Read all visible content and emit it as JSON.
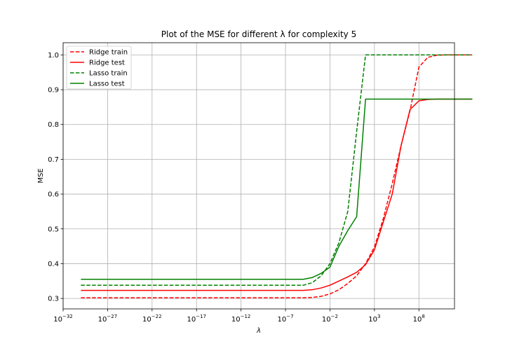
{
  "chart_data": {
    "type": "line",
    "title": "Plot of the MSE for different λ for complexity 5",
    "xlabel": "λ",
    "ylabel": "MSE",
    "xscale": "log",
    "xlim_exp": [
      -32,
      12
    ],
    "ylim": [
      0.27,
      1.035
    ],
    "grid": true,
    "legend_position": "top-left",
    "x_ticks": [
      {
        "exp": -32,
        "base": "10",
        "sup": "−32"
      },
      {
        "exp": -27,
        "base": "10",
        "sup": "−27"
      },
      {
        "exp": -22,
        "base": "10",
        "sup": "−22"
      },
      {
        "exp": -17,
        "base": "10",
        "sup": "−17"
      },
      {
        "exp": -12,
        "base": "10",
        "sup": "−12"
      },
      {
        "exp": -7,
        "base": "10",
        "sup": "−7"
      },
      {
        "exp": -2,
        "base": "10",
        "sup": "−2"
      },
      {
        "exp": 3,
        "base": "10",
        "sup": "3"
      },
      {
        "exp": 8,
        "base": "10",
        "sup": "8"
      }
    ],
    "y_ticks": [
      {
        "value": 0.3,
        "label": "0.3"
      },
      {
        "value": 0.4,
        "label": "0.4"
      },
      {
        "value": 0.5,
        "label": "0.5"
      },
      {
        "value": 0.6,
        "label": "0.6"
      },
      {
        "value": 0.7,
        "label": "0.7"
      },
      {
        "value": 0.8,
        "label": "0.8"
      },
      {
        "value": 0.9,
        "label": "0.9"
      },
      {
        "value": 1.0,
        "label": "1.0"
      }
    ],
    "series": [
      {
        "name": "Ridge train",
        "color": "#ff0000",
        "dash": "dashed",
        "points": [
          [
            -30,
            0.302
          ],
          [
            -5,
            0.302
          ],
          [
            -4,
            0.303
          ],
          [
            -3,
            0.306
          ],
          [
            -2,
            0.313
          ],
          [
            -1,
            0.325
          ],
          [
            0,
            0.343
          ],
          [
            1,
            0.365
          ],
          [
            2,
            0.4
          ],
          [
            3,
            0.448
          ],
          [
            4,
            0.53
          ],
          [
            5,
            0.63
          ],
          [
            6,
            0.74
          ],
          [
            7,
            0.84
          ],
          [
            8,
            0.965
          ],
          [
            9,
            0.993
          ],
          [
            10,
            0.999
          ],
          [
            11,
            1.0
          ],
          [
            12,
            1.0
          ],
          [
            13,
            1.0
          ],
          [
            14,
            1.0
          ]
        ]
      },
      {
        "name": "Ridge test",
        "color": "#ff0000",
        "dash": "solid",
        "points": [
          [
            -30,
            0.323
          ],
          [
            -5,
            0.323
          ],
          [
            -4,
            0.325
          ],
          [
            -3,
            0.33
          ],
          [
            -2,
            0.338
          ],
          [
            -1,
            0.35
          ],
          [
            0,
            0.362
          ],
          [
            1,
            0.375
          ],
          [
            2,
            0.397
          ],
          [
            3,
            0.44
          ],
          [
            4,
            0.52
          ],
          [
            5,
            0.6
          ],
          [
            6,
            0.74
          ],
          [
            7,
            0.843
          ],
          [
            8,
            0.868
          ],
          [
            9,
            0.872
          ],
          [
            10,
            0.873
          ],
          [
            11,
            0.873
          ],
          [
            12,
            0.873
          ],
          [
            13,
            0.873
          ],
          [
            14,
            0.873
          ]
        ]
      },
      {
        "name": "Lasso train",
        "color": "#008000",
        "dash": "dashed",
        "points": [
          [
            -30,
            0.338
          ],
          [
            -5,
            0.338
          ],
          [
            -4,
            0.345
          ],
          [
            -3,
            0.365
          ],
          [
            -2,
            0.4
          ],
          [
            -1,
            0.46
          ],
          [
            0,
            0.55
          ],
          [
            1,
            0.78
          ],
          [
            2,
            1.0
          ],
          [
            3,
            1.0
          ],
          [
            4,
            1.0
          ],
          [
            14,
            1.0
          ]
        ]
      },
      {
        "name": "Lasso test",
        "color": "#008000",
        "dash": "solid",
        "points": [
          [
            -30,
            0.355
          ],
          [
            -5,
            0.355
          ],
          [
            -4,
            0.36
          ],
          [
            -3,
            0.372
          ],
          [
            -2,
            0.39
          ],
          [
            -1,
            0.45
          ],
          [
            0,
            0.495
          ],
          [
            1,
            0.535
          ],
          [
            2,
            0.873
          ],
          [
            3,
            0.873
          ],
          [
            14,
            0.873
          ]
        ]
      }
    ]
  }
}
